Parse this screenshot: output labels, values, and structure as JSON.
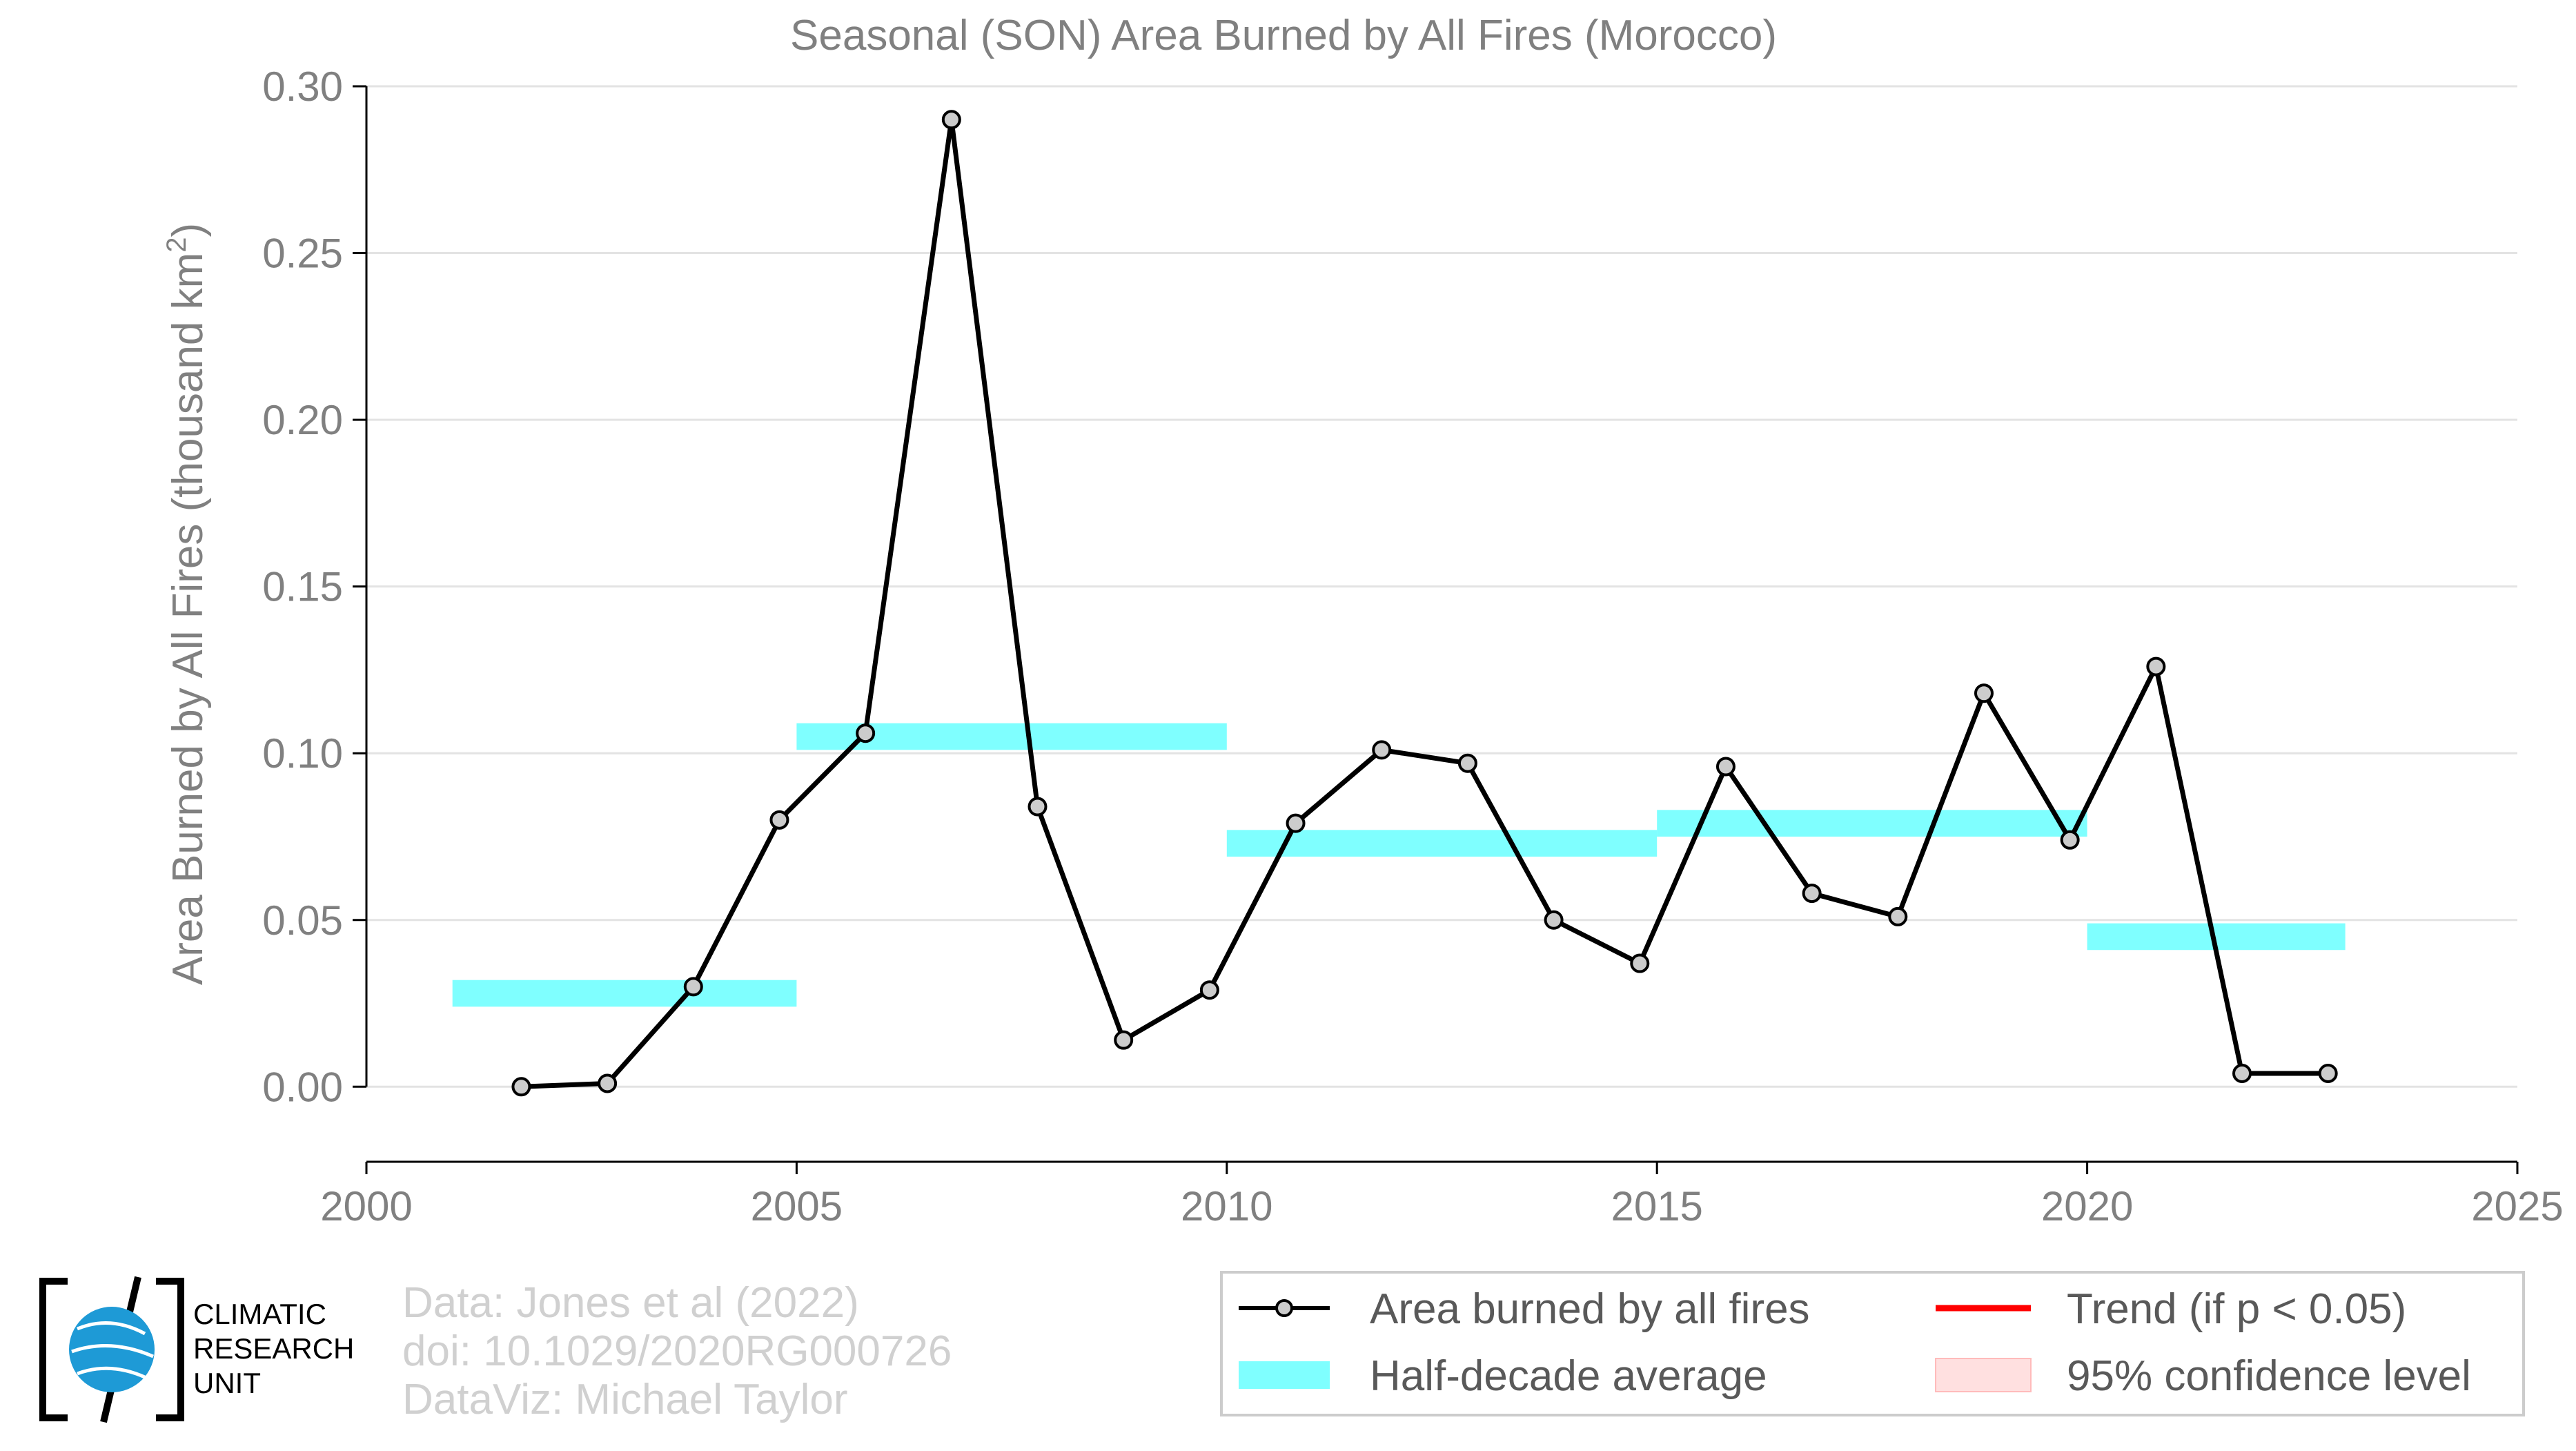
{
  "chart_data": {
    "type": "line",
    "title": "Seasonal (SON) Area Burned by All Fires (Morocco)",
    "xlabel": "",
    "ylabel": "Area Burned by All Fires (thousand km",
    "ylabel_superscript": "2",
    "ylabel_suffix": ")",
    "xlim": [
      2000,
      2025
    ],
    "ylim": [
      -0.0225,
      0.3
    ],
    "x_ticks": [
      2000,
      2005,
      2010,
      2015,
      2020,
      2025
    ],
    "x_tick_labels": [
      "2000",
      "2005",
      "2010",
      "2015",
      "2020",
      "2025"
    ],
    "y_ticks": [
      0.0,
      0.05,
      0.1,
      0.15,
      0.2,
      0.25,
      0.3
    ],
    "y_tick_labels": [
      "0.00",
      "0.05",
      "0.10",
      "0.15",
      "0.20",
      "0.25",
      "0.30"
    ],
    "grid": "horizontal",
    "series": [
      {
        "name": "Area burned by all fires",
        "color": "#000000",
        "marker_fill": "#cccccc",
        "x": [
          2001.8,
          2002.8,
          2003.8,
          2004.8,
          2005.8,
          2006.8,
          2007.8,
          2008.8,
          2009.8,
          2010.8,
          2011.8,
          2012.8,
          2013.8,
          2014.8,
          2015.8,
          2016.8,
          2017.8,
          2018.8,
          2019.8,
          2020.8,
          2021.8,
          2022.8
        ],
        "y": [
          0.0,
          0.001,
          0.03,
          0.08,
          0.106,
          0.29,
          0.084,
          0.014,
          0.029,
          0.079,
          0.101,
          0.097,
          0.05,
          0.037,
          0.096,
          0.058,
          0.051,
          0.118,
          0.074,
          0.126,
          0.004,
          0.004
        ]
      }
    ],
    "half_decade_averages": {
      "name": "Half-decade average",
      "color": "#00ffff",
      "segments": [
        {
          "x0": 2001,
          "x1": 2005,
          "y": 0.028
        },
        {
          "x0": 2005,
          "x1": 2010,
          "y": 0.105
        },
        {
          "x0": 2010,
          "x1": 2015,
          "y": 0.073
        },
        {
          "x0": 2015,
          "x1": 2020,
          "y": 0.079
        },
        {
          "x0": 2020,
          "x1": 2023,
          "y": 0.045
        }
      ]
    },
    "legend": {
      "placement": "bottom-right",
      "items": [
        {
          "label": "Area burned by all fires",
          "kind": "line-marker",
          "color": "#000000"
        },
        {
          "label": "Trend (if p < 0.05)",
          "kind": "line",
          "color": "#ff0000"
        },
        {
          "label": "Half-decade average",
          "kind": "band",
          "color": "#00ffff"
        },
        {
          "label": "95% confidence level",
          "kind": "patch",
          "color": "#ffcccc"
        }
      ]
    }
  },
  "credits": {
    "line1": "Data: Jones et al (2022)",
    "line2": "doi: 10.1029/2020RG000726",
    "line3": "DataViz: Michael Taylor"
  },
  "logo": {
    "line1": "CLIMATIC",
    "line2": "RESEARCH",
    "line3": "UNIT",
    "color": "#1e9ad6"
  }
}
